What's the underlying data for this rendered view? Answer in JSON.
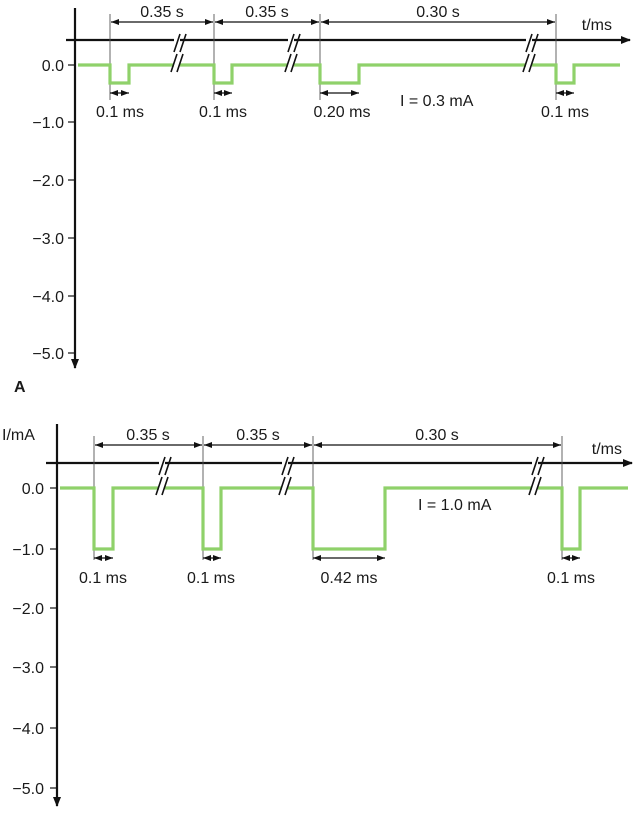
{
  "colors": {
    "waveform": "#8fd16a",
    "axis": "#111111"
  },
  "panel_a": {
    "panel_label": "A",
    "y_axis_label": "",
    "x_axis_label": "t/ms",
    "y_ticks": [
      "0.0",
      "−1.0",
      "−2.0",
      "−3.0",
      "−4.0",
      "−5.0"
    ],
    "intervals": [
      "0.35 s",
      "0.35 s",
      "0.30 s"
    ],
    "pulse_widths": [
      "0.1 ms",
      "0.1 ms",
      "0.20 ms",
      "0.1 ms"
    ],
    "amplitude_label": "I = 0.3 mA",
    "amplitude_mA": -0.3
  },
  "panel_b": {
    "panel_label": "",
    "y_axis_label": "I/mA",
    "x_axis_label": "t/ms",
    "y_ticks": [
      "0.0",
      "−1.0",
      "−2.0",
      "−3.0",
      "−4.0",
      "−5.0"
    ],
    "intervals": [
      "0.35 s",
      "0.35 s",
      "0.30 s"
    ],
    "pulse_widths": [
      "0.1 ms",
      "0.1 ms",
      "0.42 ms",
      "0.1 ms"
    ],
    "amplitude_label": "I = 1.0 mA",
    "amplitude_mA": -1.0
  }
}
